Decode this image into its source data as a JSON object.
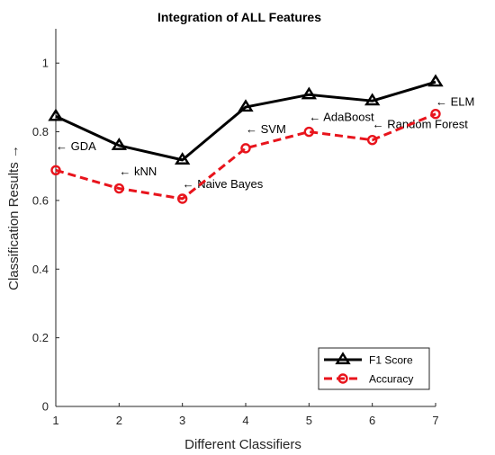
{
  "chart_data": {
    "type": "line",
    "title": "Integration of ALL Features",
    "xlabel": "Different Classifiers",
    "ylabel": "Classification Results →",
    "x": [
      1,
      2,
      3,
      4,
      5,
      6,
      7
    ],
    "xlim": [
      1,
      7
    ],
    "ylim": [
      0,
      1.1
    ],
    "xticks": [
      "1",
      "2",
      "3",
      "4",
      "5",
      "6",
      "7"
    ],
    "yticks": [
      {
        "value": 0,
        "label": "0"
      },
      {
        "value": 0.2,
        "label": "0.2"
      },
      {
        "value": 0.4,
        "label": "0.4"
      },
      {
        "value": 0.6,
        "label": "0.6"
      },
      {
        "value": 0.8,
        "label": "0.8"
      },
      {
        "value": 1,
        "label": "1"
      }
    ],
    "grid": false,
    "legend_position": "bottom-right",
    "series": [
      {
        "name": "F1 Score",
        "values": [
          0.845,
          0.76,
          0.718,
          0.872,
          0.908,
          0.89,
          0.945
        ],
        "color": "#000000",
        "marker": "triangle",
        "style": "solid"
      },
      {
        "name": "Accuracy",
        "values": [
          0.688,
          0.635,
          0.605,
          0.752,
          0.8,
          0.776,
          0.852
        ],
        "color": "#e8141c",
        "marker": "circle",
        "style": "dashed"
      }
    ],
    "annotations": [
      {
        "text": "← GDA",
        "x": 1,
        "y": 0.758
      },
      {
        "text": "← kNN",
        "x": 2,
        "y": 0.685
      },
      {
        "text": "← Naive Bayes",
        "x": 3,
        "y": 0.648
      },
      {
        "text": "← SVM",
        "x": 4,
        "y": 0.808
      },
      {
        "text": "← AdaBoost",
        "x": 5,
        "y": 0.843
      },
      {
        "text": "← Random Forest",
        "x": 6,
        "y": 0.822
      },
      {
        "text": "← ELM",
        "x": 7,
        "y": 0.888
      }
    ]
  }
}
